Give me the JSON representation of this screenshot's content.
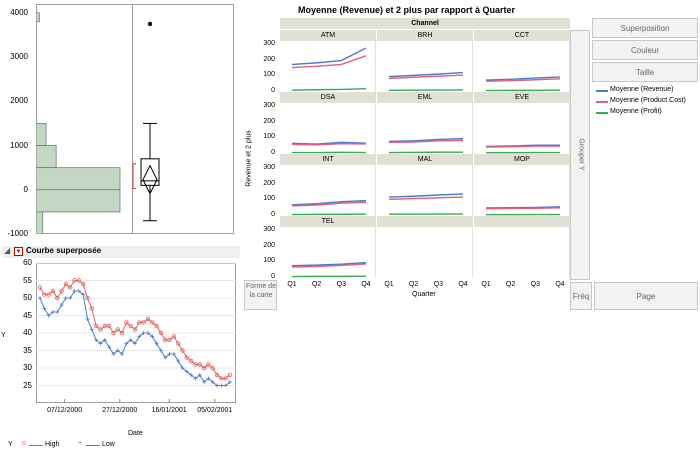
{
  "distribution": {
    "y_ticks": [
      "4000",
      "3000",
      "2000",
      "1000",
      "0",
      "-1000"
    ],
    "y_values": [
      4000,
      3000,
      2000,
      1000,
      0,
      -1000
    ],
    "ylim": [
      -1000,
      4200
    ],
    "histogram_bins": [
      {
        "from": 3800,
        "to": 4000,
        "count": 1
      },
      {
        "from": 1000,
        "to": 1500,
        "count": 3
      },
      {
        "from": 500,
        "to": 1000,
        "count": 6
      },
      {
        "from": 0,
        "to": 500,
        "count": 25
      },
      {
        "from": -500,
        "to": 0,
        "count": 25
      },
      {
        "from": -1000,
        "to": -500,
        "count": 2
      }
    ],
    "boxplot": {
      "min": -700,
      "q1": 100,
      "median": 200,
      "q3": 700,
      "max": 1500,
      "mean": 230,
      "outlier": 3750
    }
  },
  "overlay": {
    "title": "Courbe superposée",
    "y_axis_label": "Y",
    "x_axis_label": "Date",
    "y_ticks": [
      "60",
      "55",
      "50",
      "45",
      "40",
      "35",
      "30",
      "25"
    ],
    "x_ticks": [
      "07/12/2000",
      "27/12/2000",
      "16/01/2001",
      "05/02/2001"
    ],
    "legend_title": "Y",
    "legend": [
      {
        "label": "High",
        "color": "#e06060",
        "marker": "o"
      },
      {
        "label": "Low",
        "color": "#4a7bd4",
        "marker": "+"
      }
    ]
  },
  "chart_data": {
    "type": "line",
    "title": "",
    "xlabel": "Date",
    "ylabel": "Y",
    "ylim": [
      20,
      60
    ],
    "x_ticks": [
      "07/12/2000",
      "27/12/2000",
      "16/01/2001",
      "05/02/2001"
    ],
    "series": [
      {
        "name": "High",
        "values": [
          53,
          51,
          51,
          52,
          50,
          52,
          54,
          53,
          55,
          55,
          54,
          50,
          47,
          42,
          41,
          42,
          42,
          40,
          41,
          40,
          43,
          42,
          41,
          43,
          43,
          44,
          43,
          42,
          40,
          38,
          38,
          39,
          37,
          35,
          33,
          32,
          31,
          31,
          30,
          31,
          30,
          28,
          27,
          27,
          28
        ]
      },
      {
        "name": "Low",
        "values": [
          50,
          47,
          45,
          46,
          46,
          48,
          50,
          50,
          52,
          52,
          51,
          44,
          41,
          38,
          37,
          38,
          36,
          34,
          35,
          34,
          37,
          38,
          37,
          39,
          40,
          40,
          39,
          37,
          35,
          33,
          34,
          34,
          32,
          30,
          29,
          28,
          27,
          28,
          26,
          27,
          26,
          25,
          25,
          25,
          26
        ]
      }
    ]
  },
  "graph_builder": {
    "title": "Moyenne (Revenue) et 2 plus par rapport à Quarter",
    "wrap_label": "Channel",
    "y_axis_label": "Revenue et 2 plus",
    "x_axis_label": "Quarter",
    "x_ticks": [
      "Q1",
      "Q2",
      "Q3",
      "Q4"
    ],
    "y_ticks": [
      "300",
      "200",
      "100",
      "0"
    ],
    "y_values": [
      300,
      200,
      100,
      0
    ],
    "ylim": [
      0,
      320
    ],
    "buttons": {
      "overlay": "Superposition",
      "color": "Couleur",
      "size": "Taille"
    },
    "group_y": "Grouper Y",
    "freq": "Fréq",
    "page": "Page",
    "map_shape": "Forme de la carte",
    "legend": [
      {
        "label": "Moyenne (Revenue)",
        "color": "#4a7bd4"
      },
      {
        "label": "Moyenne (Product Cost)",
        "color": "#e06080"
      },
      {
        "label": "Moyenne (Profit)",
        "color": "#3aaa55"
      }
    ],
    "panels": [
      {
        "name": "ATM",
        "revenue": [
          170,
          180,
          195,
          275
        ],
        "cost": [
          150,
          158,
          170,
          225
        ],
        "profit": [
          5,
          8,
          10,
          15
        ]
      },
      {
        "name": "BRH",
        "revenue": [
          92,
          100,
          108,
          118
        ],
        "cost": [
          80,
          88,
          95,
          102
        ],
        "profit": [
          4,
          5,
          6,
          7
        ]
      },
      {
        "name": "CCT",
        "revenue": [
          70,
          75,
          83,
          90
        ],
        "cost": [
          62,
          66,
          72,
          78
        ],
        "profit": [
          3,
          4,
          4,
          5
        ]
      },
      {
        "name": "DSA",
        "revenue": [
          62,
          57,
          68,
          63
        ],
        "cost": [
          55,
          52,
          60,
          58
        ],
        "profit": [
          3,
          3,
          4,
          3
        ]
      },
      {
        "name": "EML",
        "revenue": [
          75,
          78,
          87,
          92
        ],
        "cost": [
          68,
          70,
          78,
          80
        ],
        "profit": [
          3,
          4,
          5,
          5
        ]
      },
      {
        "name": "EVE",
        "revenue": [
          42,
          45,
          50,
          50
        ],
        "cost": [
          38,
          40,
          44,
          44
        ],
        "profit": [
          2,
          2,
          3,
          3
        ]
      },
      {
        "name": "INT",
        "revenue": [
          65,
          72,
          85,
          92
        ],
        "cost": [
          58,
          64,
          76,
          82
        ],
        "profit": [
          3,
          4,
          4,
          5
        ]
      },
      {
        "name": "MAL",
        "revenue": [
          115,
          120,
          128,
          135
        ],
        "cost": [
          100,
          105,
          110,
          115
        ],
        "profit": [
          5,
          5,
          6,
          7
        ]
      },
      {
        "name": "MOP",
        "revenue": [
          45,
          47,
          48,
          52
        ],
        "cost": [
          40,
          42,
          43,
          46
        ],
        "profit": [
          2,
          2,
          3,
          3
        ]
      },
      {
        "name": "TEL",
        "revenue": [
          72,
          76,
          82,
          92
        ],
        "cost": [
          64,
          68,
          74,
          84
        ],
        "profit": [
          3,
          4,
          4,
          5
        ]
      }
    ]
  }
}
